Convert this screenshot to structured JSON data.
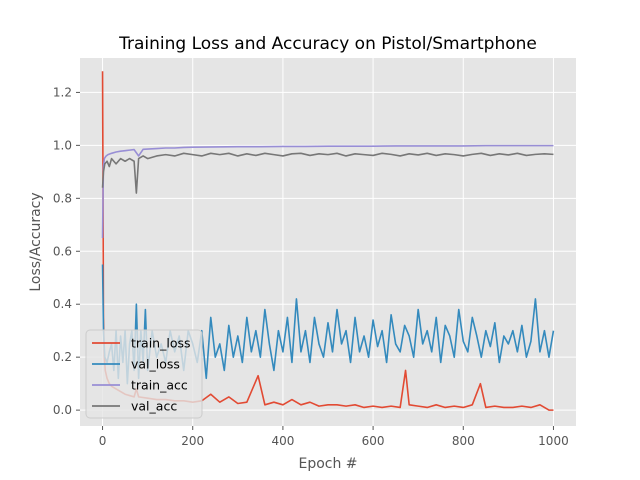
{
  "chart_data": {
    "type": "line",
    "title": "Training Loss and Accuracy on Pistol/Smartphone",
    "xlabel": "Epoch #",
    "ylabel": "Loss/Accuracy",
    "xlim": [
      -50,
      1050
    ],
    "ylim": [
      -0.06,
      1.33
    ],
    "xticks": [
      0,
      200,
      400,
      600,
      800,
      1000
    ],
    "yticks": [
      0.0,
      0.2,
      0.4,
      0.6,
      0.8,
      1.0,
      1.2
    ],
    "xtick_labels": [
      "0",
      "200",
      "400",
      "600",
      "800",
      "1000"
    ],
    "ytick_labels": [
      "0.0",
      "0.2",
      "0.4",
      "0.6",
      "0.8",
      "1.0",
      "1.2"
    ],
    "grid": true,
    "background": "#E5E5E5",
    "legend_position": "lower-left",
    "series": [
      {
        "name": "train_loss",
        "color": "#E24A33",
        "x": [
          0,
          1,
          2,
          4,
          6,
          10,
          15,
          20,
          30,
          40,
          50,
          60,
          70,
          75,
          80,
          100,
          120,
          140,
          160,
          180,
          200,
          220,
          240,
          260,
          280,
          300,
          320,
          345,
          360,
          380,
          400,
          420,
          440,
          460,
          480,
          500,
          520,
          540,
          560,
          580,
          600,
          620,
          640,
          660,
          672,
          680,
          700,
          720,
          740,
          760,
          780,
          800,
          820,
          838,
          850,
          870,
          890,
          910,
          930,
          950,
          970,
          990,
          1000
        ],
        "y": [
          1.28,
          0.85,
          0.35,
          0.2,
          0.15,
          0.12,
          0.1,
          0.09,
          0.08,
          0.07,
          0.06,
          0.055,
          0.05,
          0.08,
          0.05,
          0.045,
          0.04,
          0.04,
          0.035,
          0.035,
          0.03,
          0.035,
          0.06,
          0.03,
          0.05,
          0.025,
          0.03,
          0.13,
          0.02,
          0.03,
          0.02,
          0.04,
          0.02,
          0.03,
          0.015,
          0.02,
          0.02,
          0.015,
          0.02,
          0.01,
          0.015,
          0.01,
          0.015,
          0.01,
          0.15,
          0.02,
          0.015,
          0.01,
          0.02,
          0.01,
          0.015,
          0.01,
          0.02,
          0.1,
          0.01,
          0.015,
          0.01,
          0.01,
          0.015,
          0.01,
          0.02,
          0.0,
          0.0
        ]
      },
      {
        "name": "val_loss",
        "color": "#348ABD",
        "x": [
          0,
          2,
          5,
          10,
          15,
          20,
          25,
          30,
          35,
          40,
          45,
          50,
          55,
          60,
          65,
          70,
          75,
          80,
          85,
          90,
          95,
          100,
          110,
          120,
          130,
          140,
          150,
          160,
          170,
          180,
          190,
          200,
          210,
          220,
          230,
          240,
          250,
          260,
          270,
          280,
          290,
          300,
          310,
          320,
          330,
          340,
          350,
          360,
          370,
          380,
          390,
          400,
          410,
          420,
          430,
          440,
          450,
          460,
          470,
          480,
          490,
          500,
          510,
          520,
          530,
          540,
          550,
          560,
          570,
          580,
          590,
          600,
          610,
          620,
          630,
          640,
          650,
          660,
          670,
          680,
          690,
          700,
          710,
          720,
          730,
          740,
          750,
          760,
          770,
          780,
          790,
          800,
          810,
          820,
          830,
          840,
          850,
          860,
          870,
          880,
          890,
          900,
          910,
          920,
          930,
          940,
          950,
          960,
          970,
          980,
          990,
          1000
        ],
        "y": [
          0.55,
          0.3,
          0.2,
          0.18,
          0.22,
          0.25,
          0.15,
          0.3,
          0.12,
          0.28,
          0.18,
          0.3,
          0.1,
          0.25,
          0.3,
          0.15,
          0.4,
          0.12,
          0.3,
          0.18,
          0.38,
          0.15,
          0.3,
          0.2,
          0.25,
          0.18,
          0.3,
          0.22,
          0.28,
          0.15,
          0.3,
          0.25,
          0.18,
          0.3,
          0.12,
          0.35,
          0.2,
          0.25,
          0.15,
          0.32,
          0.2,
          0.28,
          0.18,
          0.35,
          0.22,
          0.3,
          0.2,
          0.38,
          0.25,
          0.15,
          0.3,
          0.22,
          0.35,
          0.18,
          0.42,
          0.22,
          0.3,
          0.18,
          0.35,
          0.25,
          0.2,
          0.33,
          0.22,
          0.38,
          0.25,
          0.3,
          0.18,
          0.35,
          0.22,
          0.28,
          0.2,
          0.34,
          0.24,
          0.3,
          0.18,
          0.36,
          0.25,
          0.22,
          0.32,
          0.28,
          0.2,
          0.38,
          0.25,
          0.3,
          0.22,
          0.35,
          0.18,
          0.32,
          0.28,
          0.2,
          0.38,
          0.26,
          0.22,
          0.35,
          0.28,
          0.2,
          0.3,
          0.24,
          0.33,
          0.18,
          0.28,
          0.25,
          0.3,
          0.22,
          0.32,
          0.2,
          0.26,
          0.42,
          0.22,
          0.3,
          0.2,
          0.3
        ]
      },
      {
        "name": "train_acc",
        "color": "#988ED5",
        "x": [
          0,
          1,
          2,
          4,
          8,
          12,
          20,
          30,
          40,
          50,
          60,
          70,
          80,
          90,
          100,
          120,
          140,
          160,
          180,
          200,
          250,
          300,
          350,
          400,
          450,
          500,
          550,
          600,
          650,
          700,
          750,
          800,
          850,
          900,
          950,
          1000
        ],
        "y": [
          0.65,
          0.8,
          0.92,
          0.95,
          0.96,
          0.965,
          0.97,
          0.975,
          0.978,
          0.98,
          0.982,
          0.984,
          0.96,
          0.985,
          0.986,
          0.988,
          0.99,
          0.99,
          0.992,
          0.993,
          0.994,
          0.995,
          0.995,
          0.996,
          0.996,
          0.997,
          0.997,
          0.997,
          0.998,
          0.998,
          0.998,
          0.998,
          0.999,
          0.999,
          0.999,
          0.999
        ]
      },
      {
        "name": "val_acc",
        "color": "#777777",
        "x": [
          0,
          2,
          5,
          10,
          15,
          20,
          30,
          40,
          50,
          60,
          70,
          75,
          80,
          90,
          100,
          120,
          140,
          160,
          180,
          200,
          220,
          240,
          260,
          280,
          300,
          320,
          340,
          360,
          380,
          400,
          420,
          440,
          460,
          480,
          500,
          520,
          540,
          560,
          580,
          600,
          620,
          640,
          660,
          680,
          700,
          720,
          740,
          760,
          780,
          800,
          820,
          840,
          860,
          880,
          900,
          920,
          940,
          960,
          980,
          1000
        ],
        "y": [
          0.84,
          0.9,
          0.93,
          0.94,
          0.92,
          0.95,
          0.93,
          0.95,
          0.94,
          0.95,
          0.94,
          0.82,
          0.95,
          0.96,
          0.95,
          0.96,
          0.965,
          0.96,
          0.97,
          0.965,
          0.96,
          0.97,
          0.965,
          0.97,
          0.96,
          0.968,
          0.962,
          0.97,
          0.965,
          0.96,
          0.968,
          0.97,
          0.962,
          0.968,
          0.965,
          0.97,
          0.96,
          0.968,
          0.965,
          0.962,
          0.97,
          0.966,
          0.96,
          0.968,
          0.964,
          0.97,
          0.962,
          0.968,
          0.965,
          0.96,
          0.966,
          0.97,
          0.962,
          0.968,
          0.964,
          0.97,
          0.962,
          0.966,
          0.968,
          0.966
        ]
      }
    ]
  }
}
